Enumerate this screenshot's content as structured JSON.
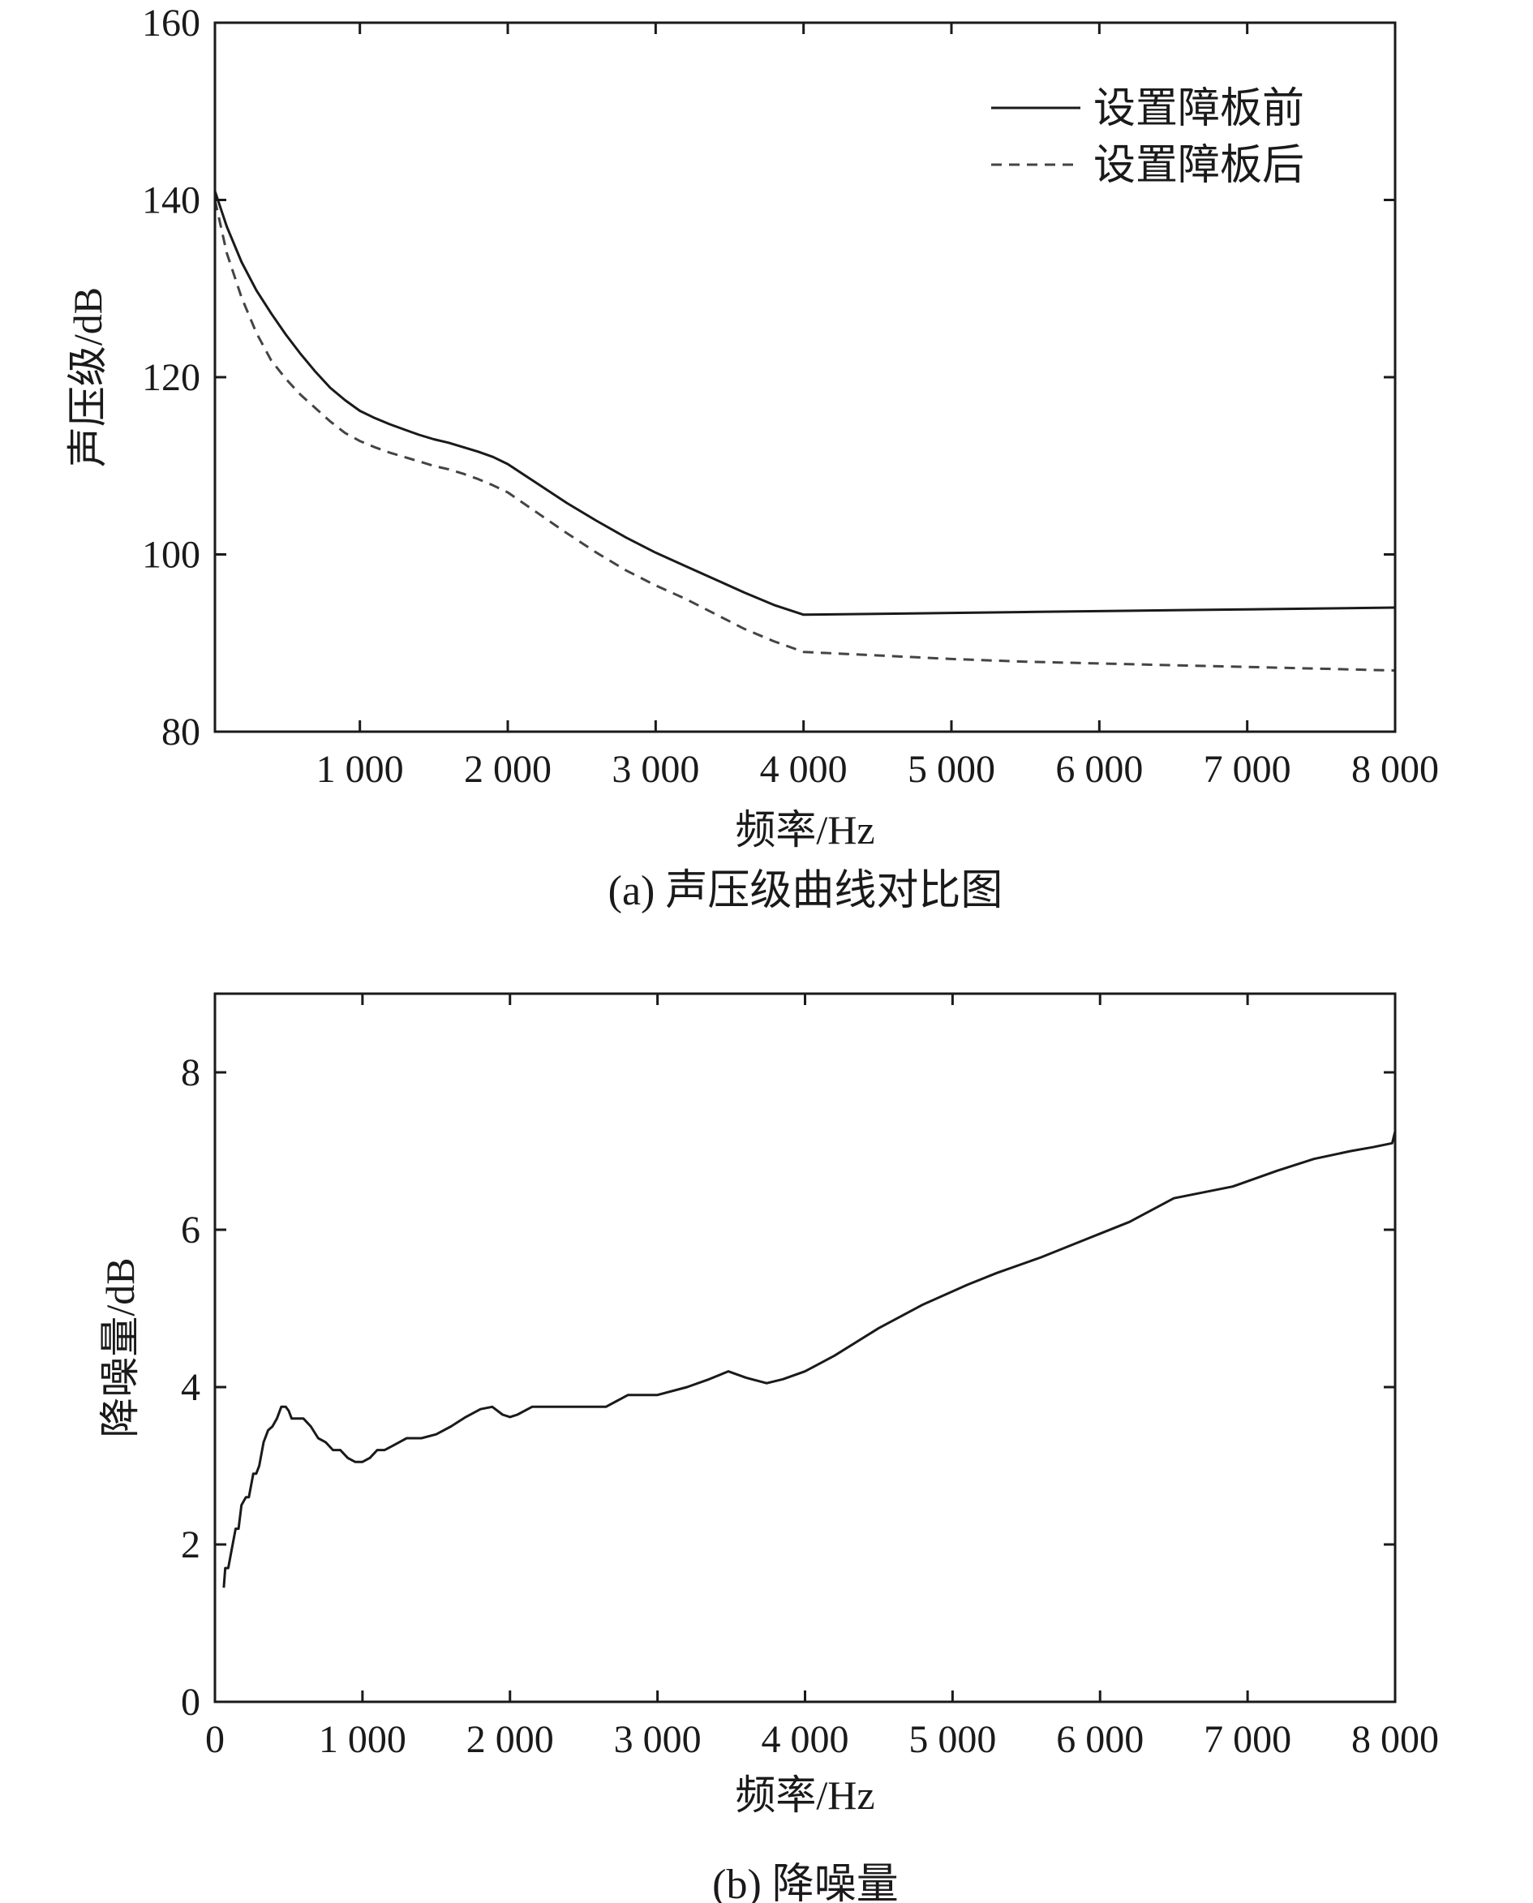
{
  "chart_data": [
    {
      "type": "line",
      "caption": "(a) 声压级曲线对比图",
      "xlabel": "频率/Hz",
      "ylabel": "声压级/dB",
      "xlim": [
        20,
        8000
      ],
      "ylim": [
        80,
        160
      ],
      "xticks": [
        1000,
        2000,
        3000,
        4000,
        5000,
        6000,
        7000,
        8000
      ],
      "xtick_labels": [
        "1 000",
        "2 000",
        "3 000",
        "4 000",
        "5 000",
        "6 000",
        "7 000",
        "8 000"
      ],
      "yticks": [
        80,
        100,
        120,
        140,
        160
      ],
      "ytick_labels": [
        "80",
        "100",
        "120",
        "140",
        "160"
      ],
      "grid": false,
      "legend_position": "top-right",
      "series": [
        {
          "name": "设置障板前",
          "style": "solid",
          "color": "#1a1a1a",
          "x": [
            20,
            100,
            200,
            300,
            400,
            500,
            600,
            700,
            800,
            900,
            1000,
            1100,
            1200,
            1300,
            1400,
            1500,
            1600,
            1700,
            1800,
            1900,
            2000,
            2200,
            2400,
            2600,
            2800,
            3000,
            3200,
            3400,
            3600,
            3800,
            4000,
            4500,
            5000,
            5500,
            6000,
            6500,
            7000,
            7500,
            8000
          ],
          "y": [
            141,
            137,
            133,
            129.8,
            127.2,
            124.8,
            122.6,
            120.6,
            118.8,
            117.4,
            116.2,
            115.4,
            114.7,
            114.1,
            113.5,
            113.0,
            112.6,
            112.1,
            111.6,
            111.0,
            110.2,
            108.0,
            105.8,
            103.8,
            101.9,
            100.2,
            98.7,
            97.2,
            95.7,
            94.3,
            93.2,
            93.3,
            93.4,
            93.5,
            93.6,
            93.7,
            93.8,
            93.9,
            94.0
          ]
        },
        {
          "name": "设置障板后",
          "style": "dashed",
          "color": "#444444",
          "x": [
            20,
            100,
            200,
            300,
            400,
            500,
            600,
            700,
            800,
            900,
            1000,
            1100,
            1200,
            1300,
            1400,
            1500,
            1600,
            1700,
            1800,
            1900,
            2000,
            2200,
            2400,
            2600,
            2800,
            3000,
            3200,
            3400,
            3600,
            3800,
            4000,
            4500,
            5000,
            5500,
            6000,
            6500,
            7000,
            7500,
            8000
          ],
          "y": [
            140,
            134,
            129,
            125,
            121.9,
            119.8,
            118,
            116.5,
            115,
            113.7,
            112.8,
            112.1,
            111.5,
            111.0,
            110.5,
            110.0,
            109.6,
            109.1,
            108.5,
            107.8,
            107.0,
            104.7,
            102.4,
            100.2,
            98.2,
            96.5,
            95.0,
            93.3,
            91.6,
            90.2,
            89.0,
            88.6,
            88.2,
            87.9,
            87.7,
            87.5,
            87.3,
            87.1,
            86.9
          ]
        }
      ]
    },
    {
      "type": "line",
      "caption": "(b) 降噪量",
      "xlabel": "频率/Hz",
      "ylabel": "降噪量/dB",
      "xlim": [
        0,
        8000
      ],
      "ylim": [
        0,
        9
      ],
      "xticks": [
        0,
        1000,
        2000,
        3000,
        4000,
        5000,
        6000,
        7000,
        8000
      ],
      "xtick_labels": [
        "0",
        "1 000",
        "2 000",
        "3 000",
        "4 000",
        "5 000",
        "6 000",
        "7 000",
        "8 000"
      ],
      "yticks": [
        0,
        2,
        4,
        6,
        8
      ],
      "ytick_labels": [
        "0",
        "2",
        "4",
        "6",
        "8"
      ],
      "grid": false,
      "series": [
        {
          "style": "solid",
          "color": "#1a1a1a",
          "x": [
            60,
            70,
            90,
            110,
            140,
            160,
            180,
            210,
            230,
            260,
            280,
            300,
            330,
            360,
            390,
            420,
            450,
            480,
            500,
            520,
            550,
            600,
            650,
            700,
            750,
            800,
            850,
            900,
            950,
            1000,
            1050,
            1100,
            1150,
            1200,
            1250,
            1300,
            1350,
            1400,
            1500,
            1600,
            1700,
            1800,
            1880,
            1950,
            2000,
            2050,
            2150,
            2300,
            2500,
            2650,
            2800,
            3000,
            3200,
            3350,
            3480,
            3600,
            3740,
            3850,
            4000,
            4200,
            4500,
            4800,
            5100,
            5300,
            5600,
            5800,
            6000,
            6200,
            6500,
            6900,
            7200,
            7450,
            7700,
            7850,
            7980,
            8000
          ],
          "y": [
            1.45,
            1.7,
            1.7,
            1.9,
            2.2,
            2.2,
            2.5,
            2.6,
            2.6,
            2.9,
            2.9,
            3.0,
            3.3,
            3.45,
            3.5,
            3.6,
            3.75,
            3.75,
            3.7,
            3.6,
            3.6,
            3.6,
            3.5,
            3.35,
            3.3,
            3.2,
            3.2,
            3.1,
            3.05,
            3.05,
            3.1,
            3.2,
            3.2,
            3.25,
            3.3,
            3.35,
            3.35,
            3.35,
            3.4,
            3.5,
            3.62,
            3.72,
            3.75,
            3.65,
            3.62,
            3.65,
            3.75,
            3.75,
            3.75,
            3.75,
            3.9,
            3.9,
            4.0,
            4.1,
            4.2,
            4.12,
            4.05,
            4.1,
            4.2,
            4.4,
            4.75,
            5.05,
            5.3,
            5.45,
            5.65,
            5.8,
            5.95,
            6.1,
            6.4,
            6.55,
            6.75,
            6.9,
            7.0,
            7.05,
            7.1,
            7.25
          ]
        }
      ]
    }
  ]
}
